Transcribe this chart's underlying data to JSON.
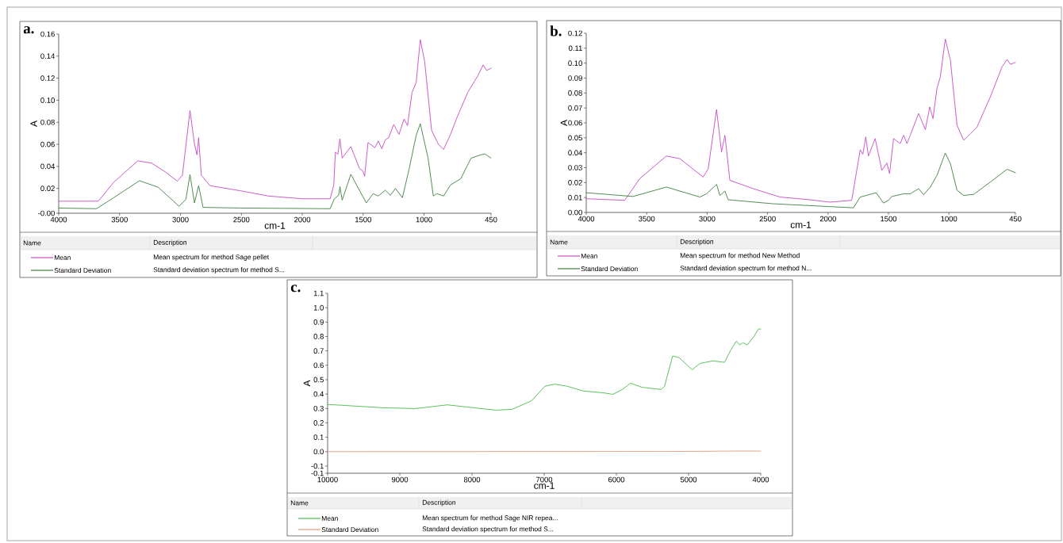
{
  "chart_data": [
    {
      "type": "line",
      "title": "a.",
      "xlabel": "cm-1",
      "ylabel": "A",
      "legend": "bottom",
      "xlim": [
        4000,
        450
      ],
      "xticks": [
        4000,
        3500,
        3000,
        2500,
        2000,
        1500,
        1000,
        450
      ],
      "ylim": [
        -0.0025,
        0.16
      ],
      "yticks": [
        {
          "value": -0.0025,
          "label": "-0.00"
        },
        0.02,
        0.04,
        0.06,
        0.08,
        {
          "value": 0.1,
          "label": "0.10"
        },
        0.12,
        0.14,
        0.16
      ],
      "annotations": [
        "Name",
        "Description",
        "Mean spectrum for method Sage pellet",
        "Standard deviation spectrum for method S..."
      ],
      "series": [
        {
          "name": "Mean",
          "color": "#c44cc4",
          "x": [
            4000,
            3675,
            3548,
            3351,
            3238,
            3125,
            3026,
            2984,
            2922,
            2885,
            2865,
            2851,
            2829,
            2758,
            2504,
            2279,
            1996,
            1771,
            1742,
            1728,
            1708,
            1691,
            1672,
            1601,
            1530,
            1503,
            1488,
            1460,
            1404,
            1376,
            1347,
            1319,
            1291,
            1249,
            1206,
            1164,
            1136,
            1099,
            1065,
            1031,
            995,
            938,
            882,
            840,
            783,
            727,
            642,
            557,
            515,
            487,
            450
          ],
          "values": [
            0.0084,
            0.0084,
            0.0256,
            0.045,
            0.043,
            0.035,
            0.0266,
            0.032,
            0.0906,
            0.06,
            0.0506,
            0.066,
            0.032,
            0.0225,
            0.0178,
            0.0131,
            0.0106,
            0.0106,
            0.0225,
            0.053,
            0.051,
            0.065,
            0.0475,
            0.058,
            0.038,
            0.036,
            0.031,
            0.0616,
            0.057,
            0.063,
            0.056,
            0.064,
            0.066,
            0.078,
            0.069,
            0.083,
            0.077,
            0.107,
            0.116,
            0.155,
            0.135,
            0.0725,
            0.06,
            0.0553,
            0.069,
            0.085,
            0.107,
            0.1225,
            0.132,
            0.127,
            0.129
          ]
        },
        {
          "name": "Standard Deviation",
          "color": "#3f7f3f",
          "x": [
            4000,
            3690,
            3548,
            3337,
            3182,
            3012,
            2956,
            2922,
            2885,
            2851,
            2815,
            2504,
            1771,
            1737,
            1701,
            1691,
            1672,
            1601,
            1544,
            1474,
            1418,
            1376,
            1319,
            1277,
            1235,
            1178,
            1122,
            1065,
            1031,
            967,
            924,
            896,
            840,
            783,
            699,
            614,
            529,
            501,
            450
          ],
          "values": [
            0.0022,
            0.0016,
            0.0116,
            0.027,
            0.021,
            0.0038,
            0.01,
            0.0325,
            0.0069,
            0.0225,
            0.0028,
            0.0022,
            0.0016,
            0.0106,
            0.0138,
            0.0216,
            0.0094,
            0.0328,
            0.021,
            0.0069,
            0.0153,
            0.0131,
            0.0184,
            0.0138,
            0.02,
            0.0116,
            0.038,
            0.068,
            0.0788,
            0.0475,
            0.0131,
            0.0153,
            0.0131,
            0.0231,
            0.0288,
            0.0475,
            0.0506,
            0.0513,
            0.0475
          ]
        }
      ]
    },
    {
      "type": "line",
      "title": "b.",
      "xlabel": "cm-1",
      "ylabel": "A",
      "legend": "bottom",
      "xlim": [
        4000,
        450
      ],
      "xticks": [
        4000,
        3500,
        3000,
        2500,
        2000,
        1500,
        1000,
        450
      ],
      "ylim": [
        0,
        0.12
      ],
      "yticks": [
        {
          "value": 0,
          "label": "0.00"
        },
        0.01,
        0.02,
        0.03,
        0.04,
        0.05,
        0.06,
        0.07,
        0.08,
        0.09,
        {
          "value": 0.1,
          "label": "0.10"
        },
        0.11,
        0.12
      ],
      "annotations": [
        "Name",
        "Description",
        "Mean spectrum for method New Method",
        "Standard deviation spectrum for method N..."
      ],
      "series": [
        {
          "name": "Mean",
          "color": "#c44cc4",
          "x": [
            4000,
            3682,
            3558,
            3337,
            3226,
            3033,
            2991,
            2922,
            2881,
            2853,
            2812,
            2618,
            2397,
            2176,
            1983,
            1804,
            1734,
            1712,
            1688,
            1666,
            1610,
            1555,
            1513,
            1491,
            1458,
            1403,
            1375,
            1347,
            1320,
            1251,
            1195,
            1159,
            1132,
            1099,
            1071,
            1030,
            988,
            933,
            878,
            822,
            767,
            712,
            657,
            560,
            519,
            491,
            450
          ],
          "values": [
            0.0092,
            0.0081,
            0.0226,
            0.0378,
            0.036,
            0.0237,
            0.0293,
            0.069,
            0.0405,
            0.0517,
            0.0215,
            0.0159,
            0.0103,
            0.0087,
            0.0069,
            0.0081,
            0.042,
            0.039,
            0.0506,
            0.0378,
            0.0495,
            0.0282,
            0.0331,
            0.026,
            0.0495,
            0.0461,
            0.0517,
            0.0461,
            0.0517,
            0.0663,
            0.0555,
            0.0707,
            0.0629,
            0.083,
            0.0909,
            0.1162,
            0.102,
            0.0584,
            0.0484,
            0.0528,
            0.0573,
            0.0674,
            0.0775,
            0.0976,
            0.1025,
            0.0992,
            0.1005
          ]
        },
        {
          "name": "Standard Deviation",
          "color": "#3f7f3f",
          "x": [
            4000,
            3613,
            3337,
            3060,
            3005,
            2922,
            2895,
            2853,
            2826,
            2453,
            1790,
            1734,
            1602,
            1541,
            1500,
            1472,
            1375,
            1320,
            1251,
            1209,
            1154,
            1099,
            1030,
            988,
            933,
            878,
            795,
            657,
            519,
            450
          ],
          "values": [
            0.0132,
            0.0107,
            0.017,
            0.0103,
            0.0125,
            0.0188,
            0.0114,
            0.0143,
            0.0085,
            0.0058,
            0.0031,
            0.0103,
            0.0132,
            0.0063,
            0.0081,
            0.0107,
            0.0125,
            0.0125,
            0.0159,
            0.0119,
            0.017,
            0.0248,
            0.0398,
            0.0327,
            0.0148,
            0.0114,
            0.0121,
            0.0204,
            0.0289,
            0.0266
          ]
        }
      ]
    },
    {
      "type": "line",
      "title": "c.",
      "xlabel": "cm-1",
      "ylabel": "A",
      "legend": "bottom",
      "xlim": [
        10000,
        4000
      ],
      "xticks": [
        10000,
        9000,
        8000,
        7000,
        6000,
        5000,
        4000
      ],
      "ylim": [
        -0.15,
        1.1
      ],
      "yticks": [
        {
          "value": -0.15,
          "label": "-0.1"
        },
        -0.1,
        {
          "value": 0,
          "label": "0.0"
        },
        0.1,
        0.2,
        0.3,
        0.4,
        0.5,
        0.6,
        0.7,
        0.8,
        0.9,
        {
          "value": 1,
          "label": "1.0"
        },
        1.1
      ],
      "annotations": [
        "Name",
        "Description",
        "Mean spectrum for method Sage NIR repea...",
        "Standard deviation spectrum for method S..."
      ],
      "series": [
        {
          "name": "Mean",
          "color": "#4cbb4c",
          "x": [
            10000,
            9237,
            8789,
            8340,
            8070,
            7666,
            7442,
            7173,
            6993,
            6858,
            6679,
            6455,
            6185,
            6051,
            5916,
            5804,
            5647,
            5378,
            5333,
            5221,
            5131,
            4952,
            4839,
            4660,
            4503,
            4413,
            4337,
            4292,
            4247,
            4188,
            4099,
            4031,
            4000
          ],
          "values": [
            0.328,
            0.305,
            0.299,
            0.325,
            0.31,
            0.288,
            0.294,
            0.354,
            0.454,
            0.469,
            0.454,
            0.421,
            0.409,
            0.398,
            0.432,
            0.476,
            0.447,
            0.432,
            0.454,
            0.664,
            0.653,
            0.569,
            0.613,
            0.631,
            0.62,
            0.708,
            0.768,
            0.741,
            0.757,
            0.741,
            0.797,
            0.852,
            0.852
          ]
        },
        {
          "name": "Standard Deviation",
          "color": "#e49a7a",
          "x": [
            10000,
            5200,
            4400,
            4000
          ],
          "values": [
            0.0,
            0.001,
            0.004,
            0.004
          ]
        }
      ]
    }
  ]
}
